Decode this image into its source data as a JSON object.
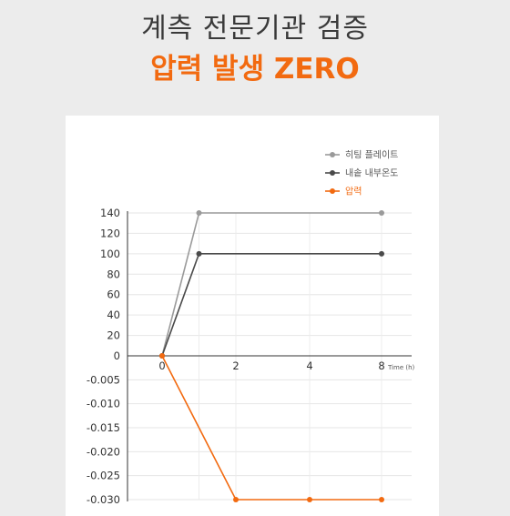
{
  "header": {
    "title": "계측 전문기관 검증",
    "subtitle": "압력 발생 ZERO"
  },
  "colors": {
    "accent": "#f26a10",
    "series_plate": "#9a9a9a",
    "series_inside": "#4a4a4a",
    "series_pressure": "#f26a10"
  },
  "chart_data": {
    "type": "line",
    "x_tick_labels": [
      "0",
      "2",
      "4",
      "8"
    ],
    "x_unit_label": "Time (h)",
    "x": [
      0,
      1,
      2,
      4,
      8
    ],
    "grid": true,
    "legend_position": "top-right",
    "upper_axis": {
      "ylim": [
        0,
        140
      ],
      "ticks": [
        0,
        20,
        40,
        60,
        80,
        100,
        120,
        140
      ],
      "tick_labels": [
        "0",
        "20",
        "40",
        "60",
        "80",
        "100",
        "120",
        "140"
      ]
    },
    "lower_axis": {
      "ylim": [
        -0.03,
        0
      ],
      "ticks": [
        -0.005,
        -0.01,
        -0.015,
        -0.02,
        -0.025,
        -0.03
      ],
      "tick_labels": [
        "-0.005",
        "-0.010",
        "-0.015",
        "-0.020",
        "-0.025",
        "-0.030"
      ]
    },
    "series": [
      {
        "name": "히팅 플레이트",
        "axis": "upper",
        "color": "#9a9a9a",
        "x": [
          0,
          1,
          8
        ],
        "values": [
          0,
          140,
          140
        ]
      },
      {
        "name": "내솥 내부온도",
        "axis": "upper",
        "color": "#4a4a4a",
        "x": [
          0,
          1,
          8
        ],
        "values": [
          0,
          100,
          100
        ]
      },
      {
        "name": "압력",
        "axis": "lower",
        "color": "#f26a10",
        "x": [
          0,
          2,
          4,
          8
        ],
        "values": [
          0,
          -0.03,
          -0.03,
          -0.03
        ]
      }
    ]
  }
}
